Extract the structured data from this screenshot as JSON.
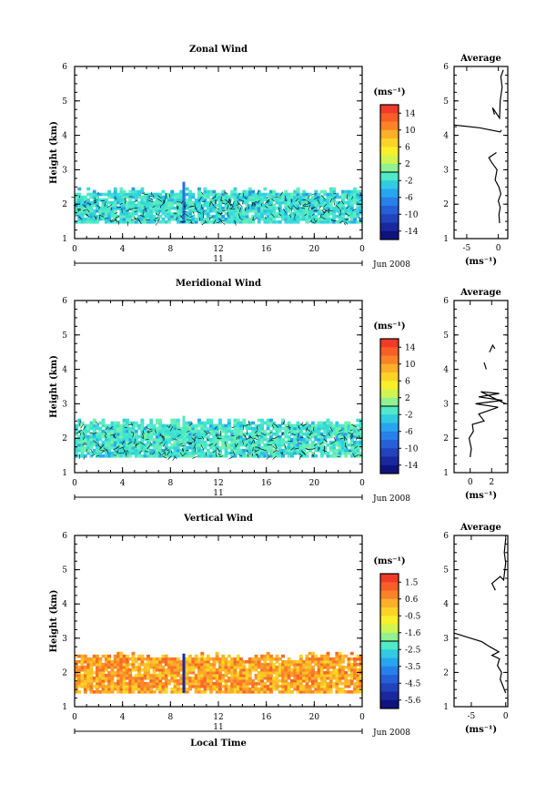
{
  "chart_data": [
    {
      "type": "heatmap",
      "title": "Zonal Wind",
      "ylabel": "Height (km)",
      "xlim": [
        0,
        24
      ],
      "ylim": [
        1,
        6
      ],
      "x_ticks": [
        "0",
        "4",
        "8",
        "12",
        "16",
        "20",
        "0"
      ],
      "y_ticks": [
        "1",
        "2",
        "3",
        "4",
        "5",
        "6"
      ],
      "date_label": "11",
      "month_label": "Jun 2008",
      "colorbar": {
        "unit": "(ms⁻¹)",
        "ticks": [
          "14",
          "10",
          "6",
          "2",
          "-2",
          "-6",
          "-10",
          "-14"
        ],
        "range": [
          -16,
          16
        ]
      },
      "data_extent": {
        "height_km": [
          1.45,
          2.4
        ],
        "local_time_h": [
          0,
          24
        ],
        "dominant_value": -1.5,
        "spike": {
          "local_time_h": 9.0,
          "height_top_km": 2.65,
          "value": -8
        }
      },
      "average_profile": {
        "title": "Average",
        "xlabel": "(ms⁻¹)",
        "xlim": [
          -7,
          1.5
        ],
        "x_ticks": [
          "-5",
          "0"
        ],
        "segments": [
          [
            [
              0.2,
              1.45
            ],
            [
              0.1,
              1.7
            ],
            [
              0.3,
              1.9
            ],
            [
              0.0,
              2.1
            ],
            [
              0.4,
              2.3
            ],
            [
              0.1,
              2.5
            ],
            [
              -0.5,
              2.7
            ],
            [
              -0.2,
              3.0
            ],
            [
              -1.0,
              3.2
            ],
            [
              -1.5,
              3.35
            ],
            [
              -0.3,
              3.5
            ]
          ],
          [
            [
              -7.0,
              4.3
            ],
            [
              -3.0,
              4.22
            ],
            [
              0.3,
              4.1
            ],
            [
              0.5,
              4.15
            ]
          ],
          [
            [
              -0.6,
              4.6
            ],
            [
              -0.9,
              4.8
            ],
            [
              0.2,
              4.5
            ],
            [
              0.3,
              5.0
            ],
            [
              0.6,
              5.4
            ],
            [
              0.4,
              5.7
            ],
            [
              0.8,
              5.9
            ]
          ]
        ]
      }
    },
    {
      "type": "heatmap",
      "title": "Meridional Wind",
      "ylabel": "Height (km)",
      "xlim": [
        0,
        24
      ],
      "ylim": [
        1,
        6
      ],
      "x_ticks": [
        "0",
        "4",
        "8",
        "12",
        "16",
        "20",
        "0"
      ],
      "y_ticks": [
        "1",
        "2",
        "3",
        "4",
        "5",
        "6"
      ],
      "date_label": "11",
      "month_label": "Jun 2008",
      "colorbar": {
        "unit": "(ms⁻¹)",
        "ticks": [
          "14",
          "10",
          "6",
          "2",
          "-2",
          "-6",
          "-10",
          "-14"
        ],
        "range": [
          -16,
          16
        ]
      },
      "data_extent": {
        "height_km": [
          1.45,
          2.5
        ],
        "local_time_h": [
          0,
          24
        ],
        "dominant_value": -1.0,
        "spike": {
          "local_time_h": 9.0,
          "height_top_km": 2.65,
          "value": -1
        }
      },
      "average_profile": {
        "title": "Average",
        "xlabel": "(ms⁻¹)",
        "xlim": [
          -1.5,
          3.5
        ],
        "x_ticks": [
          "0",
          "2"
        ],
        "segments": [
          [
            [
              0.0,
              1.45
            ],
            [
              0.1,
              1.7
            ],
            [
              -0.1,
              2.0
            ],
            [
              0.3,
              2.2
            ],
            [
              0.2,
              2.4
            ],
            [
              1.3,
              2.5
            ],
            [
              0.8,
              2.7
            ],
            [
              2.6,
              2.9
            ],
            [
              0.5,
              3.0
            ],
            [
              3.0,
              3.1
            ],
            [
              0.8,
              3.2
            ],
            [
              2.7,
              3.3
            ],
            [
              1.0,
              3.35
            ],
            [
              3.3,
              3.0
            ]
          ],
          [
            [
              1.8,
              4.5
            ],
            [
              2.1,
              4.7
            ],
            [
              2.3,
              4.6
            ]
          ],
          [
            [
              1.3,
              4.2
            ],
            [
              1.5,
              4.0
            ]
          ]
        ]
      }
    },
    {
      "type": "heatmap",
      "title": "Vertical Wind",
      "xlabel": "Local Time",
      "ylabel": "Height (km)",
      "xlim": [
        0,
        24
      ],
      "ylim": [
        1,
        6
      ],
      "x_ticks": [
        "0",
        "4",
        "8",
        "12",
        "16",
        "20",
        "0"
      ],
      "y_ticks": [
        "1",
        "2",
        "3",
        "4",
        "5",
        "6"
      ],
      "date_label": "11",
      "month_label": "Jun 2008",
      "colorbar": {
        "unit": "(ms⁻¹)",
        "ticks": [
          "1.5",
          "0.6",
          "-0.5",
          "-1.6",
          "-2.5",
          "-3.5",
          "-4.5",
          "-5.6"
        ],
        "range": [
          -6.0,
          2.0
        ]
      },
      "data_extent": {
        "height_km": [
          1.4,
          2.5
        ],
        "local_time_h": [
          0,
          24
        ],
        "dominant_value": 0.4,
        "spike": {
          "local_time_h": 9.0,
          "height_top_km": 2.55,
          "value": -5.2
        }
      },
      "average_profile": {
        "title": "Average",
        "xlabel": "(ms⁻¹)",
        "xlim": [
          -7.5,
          0.3
        ],
        "x_ticks": [
          "-5",
          "0"
        ],
        "segments": [
          [
            [
              0.0,
              1.4
            ],
            [
              -0.4,
              1.6
            ],
            [
              -0.8,
              1.8
            ],
            [
              -0.6,
              2.0
            ],
            [
              -1.2,
              2.2
            ],
            [
              -0.9,
              2.4
            ],
            [
              -2.0,
              2.5
            ],
            [
              -1.0,
              2.6
            ],
            [
              -2.3,
              2.75
            ],
            [
              -3.5,
              2.9
            ],
            [
              -7.5,
              3.15
            ]
          ],
          [
            [
              -1.5,
              4.4
            ],
            [
              -2.0,
              4.6
            ],
            [
              -0.8,
              4.8
            ],
            [
              -0.3,
              4.7
            ],
            [
              0.0,
              5.2
            ],
            [
              -0.2,
              5.5
            ],
            [
              0.0,
              5.9
            ]
          ]
        ]
      }
    }
  ]
}
